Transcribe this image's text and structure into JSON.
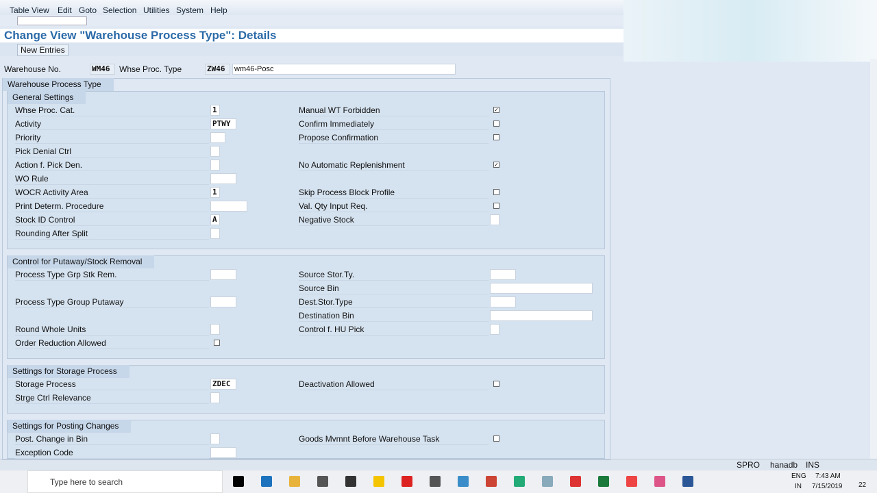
{
  "menu": [
    "Table View",
    "Edit",
    "Goto",
    "Selection",
    "Utilities",
    "System",
    "Help"
  ],
  "title": "Change View \"Warehouse Process Type\": Details",
  "toolbar": {
    "new_entries": "New Entries"
  },
  "header": {
    "warehouse_label": "Warehouse No.",
    "warehouse": "WM46",
    "type_label": "Whse Proc. Type",
    "type": "ZW46",
    "description": "wm46-Posc"
  },
  "section": "Warehouse Process Type",
  "groups": [
    {
      "title": "General Settings",
      "rows": [
        {
          "left": {
            "label": "Whse Proc. Cat.",
            "value": "1"
          },
          "right": {
            "label": "Manual WT Forbidden",
            "checked": true
          }
        },
        {
          "left": {
            "label": "Activity",
            "value": "PTWY"
          },
          "right": {
            "label": "Confirm Immediately",
            "checked": false
          }
        },
        {
          "left": {
            "label": "Priority",
            "value": null
          },
          "right": {
            "label": "Propose Confirmation",
            "checked": false
          }
        },
        {
          "left": {
            "label": "Pick Denial Ctrl",
            "value": null
          },
          "right": null
        },
        {
          "left": {
            "label": "Action f. Pick Den.",
            "value": null
          },
          "right": {
            "label": "No Automatic Replenishment",
            "checked": true
          }
        },
        {
          "left": {
            "label": "WO Rule",
            "value": null
          },
          "right": null
        },
        {
          "left": {
            "label": "WOCR Activity Area",
            "value": "1"
          },
          "right": {
            "label": "Skip Process Block Profile",
            "checked": false
          }
        },
        {
          "left": {
            "label": "Print Determ. Procedure",
            "value": null
          },
          "right": {
            "label": "Val. Qty Input Req.",
            "checked": false
          }
        },
        {
          "left": {
            "label": "Stock ID Control",
            "value": "A"
          },
          "right": {
            "label": "Negative Stock",
            "value": null
          }
        },
        {
          "left": {
            "label": "Rounding After Split",
            "value": null
          },
          "right": null
        }
      ]
    },
    {
      "title": "Control for Putaway/Stock Removal",
      "rows": [
        {
          "left": {
            "label": "Process Type Grp Stk Rem.",
            "value": null
          },
          "right": {
            "label": "Source Stor.Ty.",
            "value": null
          }
        },
        {
          "left": null,
          "right": {
            "label": "Source Bin",
            "value": null
          }
        },
        {
          "left": {
            "label": "Process Type Group Putaway",
            "value": null
          },
          "right": {
            "label": "Dest.Stor.Type",
            "value": null
          }
        },
        {
          "left": null,
          "right": {
            "label": "Destination Bin",
            "value": null
          }
        },
        {
          "left": {
            "label": "Round Whole Units",
            "value": null
          },
          "right": {
            "label": "Control f. HU Pick",
            "value": null
          }
        },
        {
          "left": {
            "label": "Order Reduction Allowed",
            "checked": false
          },
          "right": null
        }
      ]
    },
    {
      "title": "Settings for Storage Process",
      "rows": [
        {
          "left": {
            "label": "Storage Process",
            "value": "ZDEC"
          },
          "right": {
            "label": "Deactivation Allowed",
            "checked": false
          }
        },
        {
          "left": {
            "label": "Strge Ctrl Relevance",
            "value": null
          },
          "right": null
        }
      ]
    },
    {
      "title": "Settings for Posting Changes",
      "rows": [
        {
          "left": {
            "label": "Post. Change in Bin",
            "value": null
          },
          "right": {
            "label": "Goods Mvmnt Before Warehouse Task",
            "checked": false
          }
        },
        {
          "left": {
            "label": "Exception Code",
            "value": null
          },
          "right": null
        }
      ]
    }
  ],
  "status": {
    "transaction": "SPRO",
    "system": "hanadb",
    "mode": "INS"
  },
  "taskbar": {
    "search": "Type here to search",
    "lang": "ENG",
    "region": "IN",
    "time": "7:43 AM",
    "date": "7/15/2019",
    "notifications": "22"
  }
}
